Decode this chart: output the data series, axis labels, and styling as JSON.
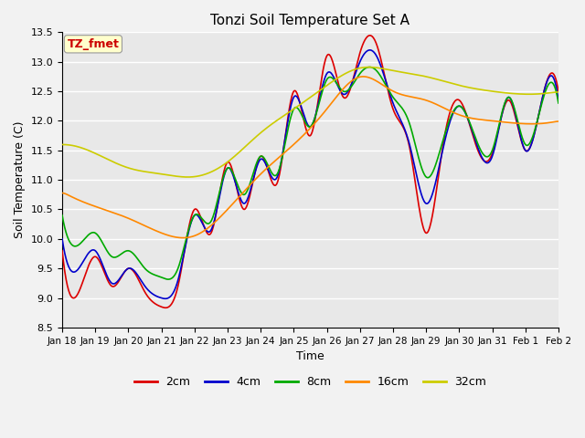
{
  "title": "Tonzi Soil Temperature Set A",
  "xlabel": "Time",
  "ylabel": "Soil Temperature (C)",
  "annotation": "TZ_fmet",
  "annotation_color": "#cc0000",
  "annotation_bg": "#ffffcc",
  "ylim": [
    8.5,
    13.5
  ],
  "plot_bg": "#e8e8e8",
  "fig_bg": "#f2f2f2",
  "grid_color": "#ffffff",
  "series": {
    "2cm": {
      "color": "#dd0000",
      "lw": 1.2
    },
    "4cm": {
      "color": "#0000cc",
      "lw": 1.2
    },
    "8cm": {
      "color": "#00aa00",
      "lw": 1.2
    },
    "16cm": {
      "color": "#ff8800",
      "lw": 1.2
    },
    "32cm": {
      "color": "#cccc00",
      "lw": 1.2
    }
  },
  "xtick_labels": [
    "Jan 18",
    "Jan 19",
    "Jan 20",
    "Jan 21",
    "Jan 22",
    "Jan 23",
    "Jan 24",
    "Jan 25",
    "Jan 26",
    "Jan 27",
    "Jan 28",
    "Jan 29",
    "Jan 30",
    "Jan 31",
    "Feb 1",
    "Feb 2"
  ],
  "ytick_labels": [
    "8.5",
    "9.0",
    "9.5",
    "10.0",
    "10.5",
    "11.0",
    "11.5",
    "12.0",
    "12.5",
    "13.0",
    "13.5"
  ]
}
